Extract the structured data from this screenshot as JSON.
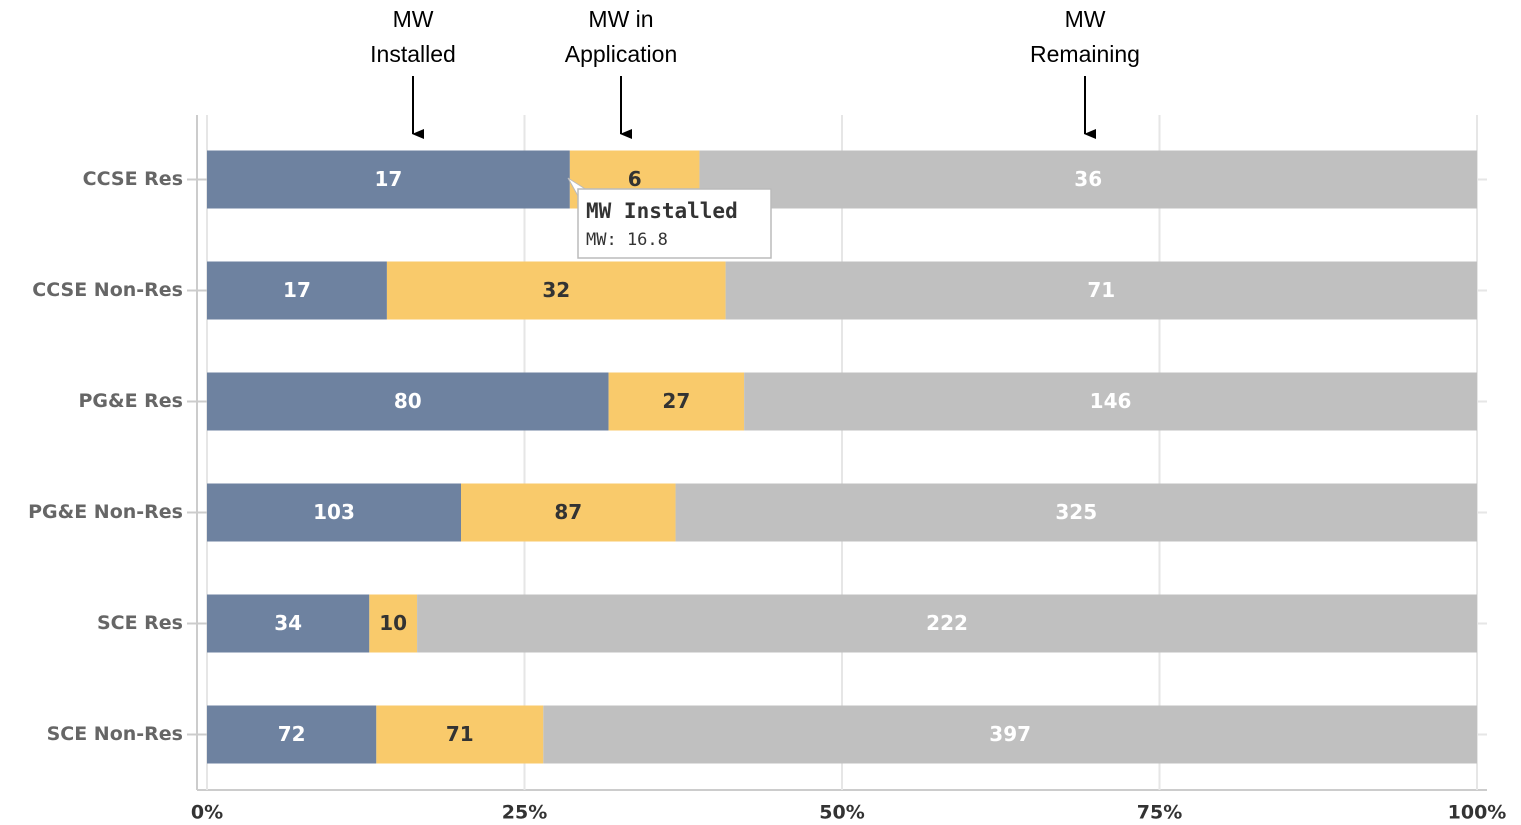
{
  "chart_data": {
    "type": "bar",
    "orientation": "horizontal",
    "stacked": "percent",
    "categories": [
      "CCSE Res",
      "CCSE Non-Res",
      "PG&E Res",
      "PG&E Non-Res",
      "SCE Res",
      "SCE Non-Res"
    ],
    "series": [
      {
        "name": "MW Installed",
        "color": "#6e82a0",
        "label_color": "#ffffff",
        "values": [
          16.8,
          17,
          80,
          103,
          34,
          72
        ],
        "value_labels": [
          "17",
          "17",
          "80",
          "103",
          "34",
          "72"
        ]
      },
      {
        "name": "MW in Application",
        "color": "#f9ca6b",
        "label_color": "#333333",
        "values": [
          6,
          32,
          27,
          87,
          10,
          71
        ]
      },
      {
        "name": "MW Remaining",
        "color": "#c0c0c0",
        "label_color": "#ffffff",
        "values": [
          36,
          71,
          146,
          325,
          222,
          397
        ]
      }
    ],
    "annotations": [
      {
        "lines": [
          "MW",
          "Installed"
        ]
      },
      {
        "lines": [
          "MW in",
          "Application"
        ]
      },
      {
        "lines": [
          "MW",
          "Remaining"
        ]
      }
    ],
    "tooltip": {
      "title": "MW Installed",
      "text": "MW: 16.8"
    },
    "xlim": [
      0,
      100
    ],
    "xticks": [
      {
        "value": 0,
        "label": "0%"
      },
      {
        "value": 25,
        "label": "25%"
      },
      {
        "value": 50,
        "label": "50%"
      },
      {
        "value": 75,
        "label": "75%"
      },
      {
        "value": 100,
        "label": "100%"
      }
    ],
    "grid": true
  }
}
